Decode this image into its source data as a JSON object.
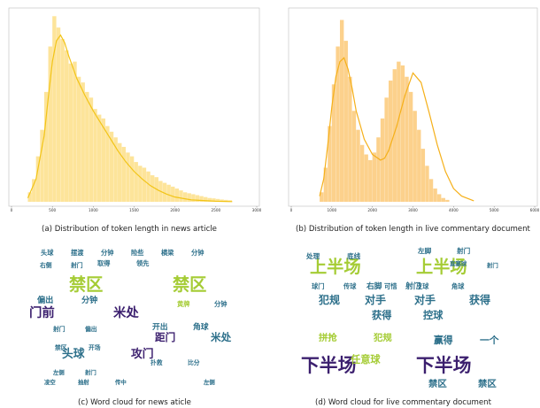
{
  "chart_data": [
    {
      "type": "bar",
      "title": "",
      "caption": "(a) Distribution of token length in news article",
      "xticks": [
        "0",
        "500",
        "1000",
        "1500",
        "2000",
        "2500",
        "3000"
      ],
      "xlim": [
        0,
        3000
      ],
      "ylim": [
        0,
        1
      ],
      "bin_width": 50,
      "bins_start": 200,
      "values": [
        0.05,
        0.12,
        0.24,
        0.38,
        0.58,
        0.82,
        0.98,
        0.92,
        0.86,
        0.8,
        0.73,
        0.74,
        0.66,
        0.63,
        0.58,
        0.55,
        0.49,
        0.46,
        0.44,
        0.4,
        0.37,
        0.34,
        0.31,
        0.29,
        0.26,
        0.24,
        0.21,
        0.19,
        0.18,
        0.16,
        0.14,
        0.13,
        0.11,
        0.1,
        0.09,
        0.08,
        0.07,
        0.06,
        0.05,
        0.045,
        0.04,
        0.035,
        0.03,
        0.025,
        0.02,
        0.018,
        0.015,
        0.012,
        0.01,
        0.008
      ],
      "kde_x": [
        200,
        300,
        400,
        450,
        500,
        550,
        600,
        650,
        700,
        800,
        900,
        1000,
        1100,
        1200,
        1300,
        1400,
        1500,
        1600,
        1700,
        1800,
        1900,
        2000,
        2200,
        2500,
        2700
      ],
      "kde_y": [
        0.02,
        0.12,
        0.35,
        0.55,
        0.74,
        0.85,
        0.88,
        0.84,
        0.77,
        0.65,
        0.56,
        0.48,
        0.41,
        0.34,
        0.27,
        0.21,
        0.16,
        0.12,
        0.085,
        0.06,
        0.04,
        0.025,
        0.01,
        0.003,
        0.001
      ],
      "bar_color": "#fde49a",
      "line_color": "#f2c417"
    },
    {
      "type": "bar",
      "title": "",
      "caption": "(b) Distribution of token length in live commentary document",
      "xticks": [
        "0",
        "1000",
        "2000",
        "3000",
        "4000",
        "5000",
        "6000"
      ],
      "xlim": [
        0,
        6000
      ],
      "ylim": [
        0,
        1
      ],
      "bin_width": 100,
      "bins_start": 700,
      "values": [
        0.05,
        0.18,
        0.4,
        0.62,
        0.82,
        0.96,
        0.85,
        0.66,
        0.48,
        0.38,
        0.3,
        0.25,
        0.22,
        0.26,
        0.34,
        0.44,
        0.55,
        0.64,
        0.7,
        0.74,
        0.72,
        0.66,
        0.58,
        0.48,
        0.38,
        0.28,
        0.19,
        0.12,
        0.07,
        0.04,
        0.02,
        0.01
      ],
      "kde_x": [
        700,
        800,
        900,
        1000,
        1100,
        1200,
        1300,
        1400,
        1500,
        1600,
        1800,
        2000,
        2200,
        2300,
        2400,
        2600,
        2800,
        3000,
        3200,
        3400,
        3600,
        3800,
        4000,
        4200,
        4500
      ],
      "kde_y": [
        0.03,
        0.12,
        0.3,
        0.5,
        0.66,
        0.74,
        0.76,
        0.7,
        0.6,
        0.48,
        0.33,
        0.25,
        0.22,
        0.23,
        0.27,
        0.4,
        0.56,
        0.68,
        0.63,
        0.47,
        0.3,
        0.16,
        0.07,
        0.03,
        0.005
      ],
      "bar_color": "#fcd18c",
      "line_color": "#f5b01a"
    }
  ],
  "wordclouds": [
    {
      "caption": "(c) Word cloud for news aticle",
      "words": [
        {
          "t": "禁区",
          "c": "#a5cc35",
          "s": 9.6
        },
        {
          "t": "禁区",
          "c": "#a5cc35",
          "s": 9.6
        },
        {
          "t": "门前",
          "c": "#3b1f6e",
          "s": 7.2
        },
        {
          "t": "米处",
          "c": "#3b1f6e",
          "s": 7.2
        },
        {
          "t": "头球",
          "c": "#2c6f8a",
          "s": 6.4
        },
        {
          "t": "攻门",
          "c": "#3b1f6e",
          "s": 6.4
        },
        {
          "t": "距门",
          "c": "#3b1f6e",
          "s": 5.8
        },
        {
          "t": "米处",
          "c": "#2c6f8a",
          "s": 5.8
        },
        {
          "t": "偏出",
          "c": "#2c6f8a",
          "s": 4.6
        },
        {
          "t": "分钟",
          "c": "#2c6f8a",
          "s": 4.6
        },
        {
          "t": "开出",
          "c": "#2c6f8a",
          "s": 4.4
        },
        {
          "t": "角球",
          "c": "#2c6f8a",
          "s": 4.4
        },
        {
          "t": "头球",
          "c": "#2c6f8a",
          "s": 3.6
        },
        {
          "t": "摆渡",
          "c": "#2c6f8a",
          "s": 3.6
        },
        {
          "t": "分钟",
          "c": "#2c6f8a",
          "s": 3.6
        },
        {
          "t": "险些",
          "c": "#2c6f8a",
          "s": 3.6
        },
        {
          "t": "横梁",
          "c": "#2c6f8a",
          "s": 3.6
        },
        {
          "t": "分钟",
          "c": "#2c6f8a",
          "s": 3.6
        },
        {
          "t": "取得",
          "c": "#2c6f8a",
          "s": 3.6
        },
        {
          "t": "领先",
          "c": "#2c6f8a",
          "s": 3.6
        },
        {
          "t": "右侧",
          "c": "#2c6f8a",
          "s": 3.4
        },
        {
          "t": "射门",
          "c": "#2c6f8a",
          "s": 3.4
        },
        {
          "t": "黄牌",
          "c": "#a5cc35",
          "s": 3.6
        },
        {
          "t": "分钟",
          "c": "#2c6f8a",
          "s": 3.6
        },
        {
          "t": "射门",
          "c": "#2c6f8a",
          "s": 3.4
        },
        {
          "t": "偏出",
          "c": "#2c6f8a",
          "s": 3.4
        },
        {
          "t": "禁区",
          "c": "#2c6f8a",
          "s": 3.4
        },
        {
          "t": "开场",
          "c": "#2c6f8a",
          "s": 3.4
        },
        {
          "t": "扑救",
          "c": "#2c6f8a",
          "s": 3.4
        },
        {
          "t": "比分",
          "c": "#2c6f8a",
          "s": 3.4
        },
        {
          "t": "左侧",
          "c": "#2c6f8a",
          "s": 3.2
        },
        {
          "t": "射门",
          "c": "#2c6f8a",
          "s": 3.2
        },
        {
          "t": "凌空",
          "c": "#2c6f8a",
          "s": 3.2
        },
        {
          "t": "抽射",
          "c": "#2c6f8a",
          "s": 3.2
        },
        {
          "t": "传中",
          "c": "#2c6f8a",
          "s": 3.2
        },
        {
          "t": "左侧",
          "c": "#2c6f8a",
          "s": 3.2
        }
      ]
    },
    {
      "caption": "(d) Word cloud for live commentary document",
      "words": [
        {
          "t": "上半场",
          "c": "#a5cc35",
          "s": 9.6
        },
        {
          "t": "上半场",
          "c": "#a5cc35",
          "s": 9.6
        },
        {
          "t": "下半场",
          "c": "#3b1f6e",
          "s": 10.4
        },
        {
          "t": "下半场",
          "c": "#3b1f6e",
          "s": 10.4
        },
        {
          "t": "犯规",
          "c": "#2c6f8a",
          "s": 6.0
        },
        {
          "t": "对手",
          "c": "#2c6f8a",
          "s": 6.0
        },
        {
          "t": "对手",
          "c": "#2c6f8a",
          "s": 6.0
        },
        {
          "t": "获得",
          "c": "#2c6f8a",
          "s": 6.0
        },
        {
          "t": "获得",
          "c": "#2c6f8a",
          "s": 5.6
        },
        {
          "t": "控球",
          "c": "#2c6f8a",
          "s": 5.6
        },
        {
          "t": "拼抢",
          "c": "#a5cc35",
          "s": 5.2
        },
        {
          "t": "犯规",
          "c": "#a5cc35",
          "s": 5.2
        },
        {
          "t": "赢得",
          "c": "#2c6f8a",
          "s": 5.4
        },
        {
          "t": "一个",
          "c": "#2c6f8a",
          "s": 5.4
        },
        {
          "t": "任意球",
          "c": "#a5cc35",
          "s": 5.6
        },
        {
          "t": "禁区",
          "c": "#2c6f8a",
          "s": 5.2
        },
        {
          "t": "禁区",
          "c": "#2c6f8a",
          "s": 5.2
        },
        {
          "t": "右脚",
          "c": "#2c6f8a",
          "s": 4.4
        },
        {
          "t": "射门",
          "c": "#2c6f8a",
          "s": 4.4
        },
        {
          "t": "处理",
          "c": "#2c6f8a",
          "s": 3.8
        },
        {
          "t": "底线",
          "c": "#2c6f8a",
          "s": 3.8
        },
        {
          "t": "左脚",
          "c": "#2c6f8a",
          "s": 3.8
        },
        {
          "t": "射门",
          "c": "#2c6f8a",
          "s": 3.8
        },
        {
          "t": "球门",
          "c": "#2c6f8a",
          "s": 3.6
        },
        {
          "t": "传球",
          "c": "#2c6f8a",
          "s": 3.6
        },
        {
          "t": "可惜",
          "c": "#2c6f8a",
          "s": 3.6
        },
        {
          "t": "皮球",
          "c": "#2c6f8a",
          "s": 3.6
        },
        {
          "t": "角球",
          "c": "#2c6f8a",
          "s": 3.6
        },
        {
          "t": "直塞球",
          "c": "#2c6f8a",
          "s": 3.2
        },
        {
          "t": "射门",
          "c": "#2c6f8a",
          "s": 3.2
        }
      ]
    }
  ]
}
